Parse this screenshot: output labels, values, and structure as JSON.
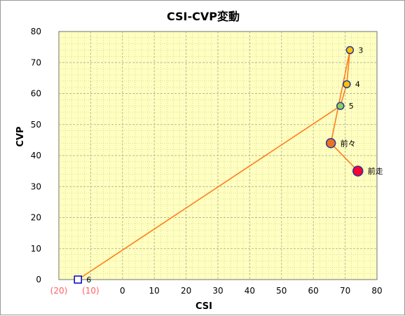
{
  "chart_data": {
    "type": "scatter",
    "title": "CSI-CVP変動",
    "xlabel": "CSI",
    "ylabel": "CVP",
    "xlim": [
      -20,
      80
    ],
    "ylim": [
      0,
      80
    ],
    "x_ticks": [
      {
        "value": -20,
        "label": "(20)",
        "negative": true
      },
      {
        "value": -10,
        "label": "(10)",
        "negative": true
      },
      {
        "value": 0,
        "label": "0"
      },
      {
        "value": 10,
        "label": "10"
      },
      {
        "value": 20,
        "label": "20"
      },
      {
        "value": 30,
        "label": "30"
      },
      {
        "value": 40,
        "label": "40"
      },
      {
        "value": 50,
        "label": "50"
      },
      {
        "value": 60,
        "label": "60"
      },
      {
        "value": 70,
        "label": "70"
      },
      {
        "value": 80,
        "label": "80"
      }
    ],
    "y_ticks": [
      "0",
      "10",
      "20",
      "30",
      "40",
      "50",
      "60",
      "70",
      "80"
    ],
    "grid": true,
    "colors": {
      "plot_background": "#ffffc0",
      "grid": "#b8b8a0",
      "line": "#ff7f1e",
      "negative_tick_label": "#ff6060"
    },
    "points": [
      {
        "label": "6",
        "x": -14,
        "y": 0,
        "marker": "square",
        "fill": "#ffffff",
        "stroke": "#0000cc"
      },
      {
        "label": "5",
        "x": 68.5,
        "y": 56,
        "marker": "circle",
        "fill": "#92d050",
        "stroke": "#1f3a9c"
      },
      {
        "label": "4",
        "x": 70.5,
        "y": 63,
        "marker": "circle",
        "fill": "#ffc000",
        "stroke": "#1f3a9c"
      },
      {
        "label": "3",
        "x": 71.5,
        "y": 74,
        "marker": "circle",
        "fill": "#ffc000",
        "stroke": "#1f3a9c"
      },
      {
        "label": "前々",
        "x": 65.5,
        "y": 44,
        "marker": "circle-large",
        "fill": "#f07020",
        "stroke": "#1f3a9c"
      },
      {
        "label": "前走",
        "x": 74,
        "y": 35,
        "marker": "circle-xlarge",
        "fill": "#ff0030",
        "stroke": "#1f3a9c"
      }
    ]
  }
}
